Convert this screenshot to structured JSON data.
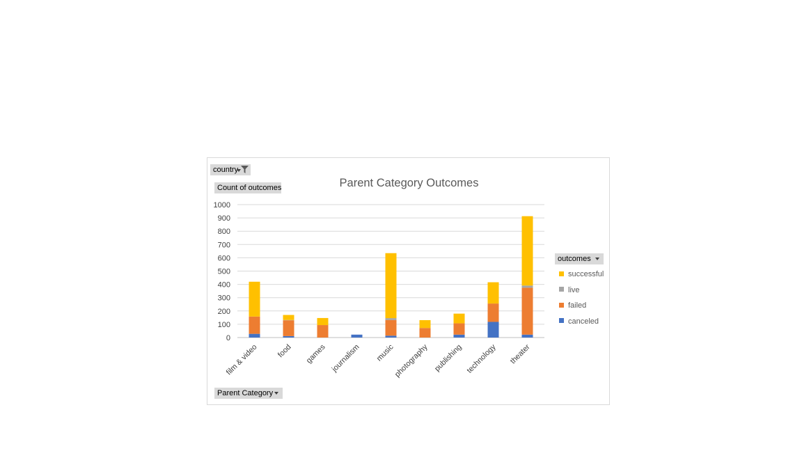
{
  "field_buttons": {
    "filter": "country",
    "values": "Count of outcomes",
    "axis": "Parent Category",
    "legend": "outcomes"
  },
  "chart_data": {
    "type": "bar",
    "stacked": true,
    "title": "Parent Category Outcomes",
    "xlabel": "",
    "ylabel": "",
    "ylim": [
      0,
      1000
    ],
    "yticks": [
      0,
      100,
      200,
      300,
      400,
      500,
      600,
      700,
      800,
      900,
      1000
    ],
    "grid": true,
    "legend_position": "right",
    "categories": [
      "film & video",
      "food",
      "games",
      "journalism",
      "music",
      "photography",
      "publishing",
      "technology",
      "theater"
    ],
    "series": [
      {
        "name": "canceled",
        "color": "#4472c4",
        "values": [
          28,
          11,
          0,
          22,
          14,
          0,
          22,
          118,
          22
        ]
      },
      {
        "name": "failed",
        "color": "#ed7d31",
        "values": [
          130,
          119,
          94,
          0,
          118,
          72,
          85,
          138,
          353
        ]
      },
      {
        "name": "live",
        "color": "#a5a5a5",
        "values": [
          0,
          2,
          0,
          0,
          14,
          0,
          0,
          0,
          16
        ]
      },
      {
        "name": "successful",
        "color": "#ffc000",
        "values": [
          262,
          38,
          53,
          0,
          489,
          59,
          73,
          160,
          522
        ]
      }
    ]
  }
}
